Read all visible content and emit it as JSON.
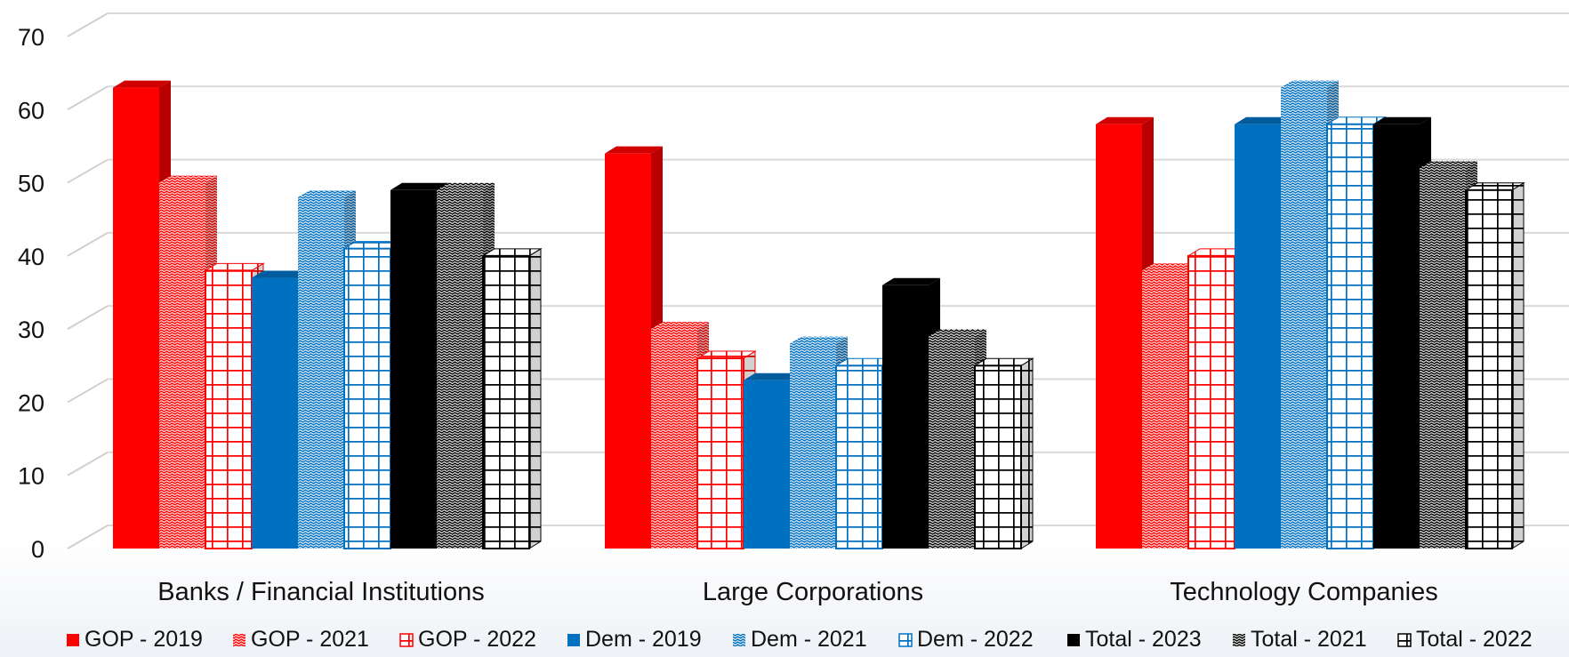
{
  "chart_data": {
    "type": "bar",
    "title": "",
    "xlabel": "",
    "ylabel": "",
    "ylim": [
      0,
      70
    ],
    "yticks": [
      0,
      10,
      20,
      30,
      40,
      50,
      60,
      70
    ],
    "grid": true,
    "legend_position": "bottom",
    "categories": [
      "Banks / Financial Institutions",
      "Large Corporations",
      "Technology Companies"
    ],
    "series": [
      {
        "name": "GOP - 2019",
        "values": [
          63,
          54,
          58
        ],
        "color": "#ff0000",
        "pattern": "solid"
      },
      {
        "name": "GOP - 2021",
        "values": [
          50,
          30,
          38
        ],
        "color": "#ff0000",
        "pattern": "dots"
      },
      {
        "name": "GOP - 2022",
        "values": [
          38,
          26,
          40
        ],
        "color": "#ff0000",
        "pattern": "grid"
      },
      {
        "name": "Dem - 2019",
        "values": [
          37,
          23,
          58
        ],
        "color": "#0070c0",
        "pattern": "solid"
      },
      {
        "name": "Dem - 2021",
        "values": [
          48,
          28,
          63
        ],
        "color": "#0070c0",
        "pattern": "dots"
      },
      {
        "name": "Dem - 2022",
        "values": [
          41,
          25,
          58
        ],
        "color": "#0070c0",
        "pattern": "grid"
      },
      {
        "name": "Total - 2023",
        "values": [
          49,
          36,
          58
        ],
        "color": "#000000",
        "pattern": "solid"
      },
      {
        "name": "Total - 2021",
        "values": [
          49,
          29,
          52
        ],
        "color": "#000000",
        "pattern": "dots"
      },
      {
        "name": "Total - 2022",
        "values": [
          40,
          25,
          49
        ],
        "color": "#000000",
        "pattern": "grid"
      }
    ]
  }
}
